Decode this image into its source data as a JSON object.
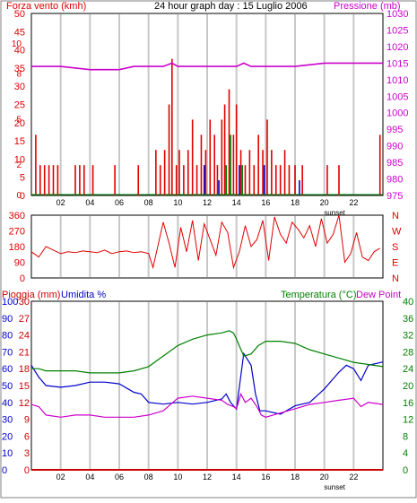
{
  "title": "24 hour graph day : 15 Luglio 2006",
  "colors": {
    "wind": "#e00000",
    "pressure": "#cc00cc",
    "gust_blue": "#0000cc",
    "gust_green": "#008000",
    "direction": "#e00000",
    "humidity": "#0000cc",
    "temperature": "#008000",
    "dew_point": "#cc00cc",
    "rain": "#cc0000",
    "grid": "#c8c8c8",
    "axis": "#000000"
  },
  "x_ticks": [
    "02",
    "04",
    "06",
    "08",
    "10",
    "12",
    "14",
    "16",
    "18",
    "20",
    "22"
  ],
  "sunset_label": "sunset",
  "chart_data": [
    {
      "type": "bar",
      "left_axis_label": "Forza vento (kmh)",
      "right_axis_label": "Pressione (mb)",
      "left_ticks": [
        "0",
        "5",
        "10",
        "15",
        "20",
        "25",
        "30",
        "35",
        "40",
        "45",
        "50"
      ],
      "left_ylim": [
        0,
        50
      ],
      "right_ticks": [
        "975",
        "980",
        "985",
        "990",
        "995",
        "1000",
        "1005",
        "1010",
        "1015",
        "1020",
        "1025",
        "1030"
      ],
      "right_ylim": [
        975,
        1030
      ],
      "xlim": [
        0,
        24
      ],
      "inner_axis_ticks": [
        "0",
        "2",
        "5",
        "8",
        "10"
      ],
      "wind_bars": [
        [
          0.3,
          4
        ],
        [
          0.6,
          2
        ],
        [
          0.9,
          2
        ],
        [
          1.2,
          2
        ],
        [
          1.5,
          2
        ],
        [
          1.8,
          2
        ],
        [
          3.0,
          2
        ],
        [
          3.3,
          2
        ],
        [
          3.6,
          2
        ],
        [
          4.2,
          2
        ],
        [
          5.7,
          2
        ],
        [
          7.3,
          2
        ],
        [
          8.5,
          3
        ],
        [
          8.8,
          2
        ],
        [
          9.1,
          3
        ],
        [
          9.4,
          6
        ],
        [
          9.6,
          9
        ],
        [
          9.9,
          2
        ],
        [
          10.1,
          3
        ],
        [
          10.4,
          2
        ],
        [
          10.7,
          3
        ],
        [
          11.0,
          5
        ],
        [
          11.3,
          2
        ],
        [
          11.6,
          4
        ],
        [
          11.9,
          3
        ],
        [
          12.2,
          5
        ],
        [
          12.5,
          4
        ],
        [
          12.7,
          2
        ],
        [
          13.0,
          5
        ],
        [
          13.2,
          6
        ],
        [
          13.5,
          7
        ],
        [
          13.8,
          4
        ],
        [
          14.0,
          6
        ],
        [
          14.3,
          3
        ],
        [
          14.6,
          2
        ],
        [
          14.9,
          3
        ],
        [
          15.2,
          2
        ],
        [
          15.5,
          4
        ],
        [
          15.8,
          3
        ],
        [
          16.1,
          5
        ],
        [
          16.4,
          3
        ],
        [
          16.7,
          2
        ],
        [
          17.0,
          2
        ],
        [
          17.3,
          3
        ],
        [
          17.6,
          2
        ],
        [
          18.0,
          2
        ],
        [
          18.5,
          2
        ],
        [
          20.2,
          2
        ],
        [
          21.0,
          2
        ],
        [
          23.8,
          4
        ]
      ],
      "gust_blue_bars": [
        [
          11.8,
          2
        ],
        [
          12.8,
          1
        ],
        [
          14.2,
          2
        ],
        [
          15.9,
          2
        ],
        [
          18.3,
          1
        ]
      ],
      "gust_green_bars": [
        [
          13.3,
          2
        ],
        [
          13.6,
          4
        ],
        [
          14.4,
          2
        ]
      ],
      "pressure": {
        "x": [
          0,
          2,
          4,
          6,
          7,
          8,
          9,
          9.6,
          10,
          11,
          12,
          13,
          14,
          14.5,
          15,
          16,
          18,
          20,
          22,
          24
        ],
        "y": [
          1014,
          1014,
          1013,
          1013,
          1014,
          1014,
          1014,
          1015,
          1014,
          1014,
          1014,
          1014,
          1014,
          1015,
          1014,
          1014,
          1014,
          1015,
          1015,
          1015
        ]
      }
    },
    {
      "type": "line",
      "left_axis_label": "",
      "right_axis_label": "",
      "left_ticks": [
        "0",
        "90",
        "180",
        "270",
        "360"
      ],
      "left_ylim": [
        0,
        360
      ],
      "right_ticks": [
        "N",
        "E",
        "S",
        "W",
        "N"
      ],
      "xlim": [
        0,
        24
      ],
      "direction": {
        "x": [
          0,
          0.5,
          1.0,
          1.5,
          2.0,
          2.5,
          3.0,
          3.5,
          4.0,
          4.5,
          5.0,
          5.5,
          6.0,
          6.5,
          7.0,
          7.5,
          8.0,
          8.3,
          8.6,
          9.0,
          9.4,
          9.8,
          10.2,
          10.6,
          11.0,
          11.4,
          11.8,
          12.2,
          12.6,
          13.0,
          13.4,
          13.8,
          14.2,
          14.6,
          15.0,
          15.4,
          15.8,
          16.2,
          16.6,
          17.0,
          17.4,
          17.8,
          18.2,
          18.6,
          19.0,
          19.4,
          19.8,
          20.2,
          20.6,
          21.0,
          21.4,
          21.8,
          22.2,
          22.6,
          23.0,
          23.4,
          23.8
        ],
        "y": [
          150,
          120,
          180,
          160,
          140,
          150,
          145,
          155,
          150,
          145,
          160,
          140,
          150,
          155,
          145,
          150,
          140,
          60,
          170,
          320,
          200,
          60,
          290,
          150,
          330,
          100,
          310,
          220,
          130,
          320,
          260,
          60,
          150,
          300,
          180,
          220,
          330,
          100,
          350,
          250,
          200,
          320,
          280,
          230,
          300,
          180,
          340,
          200,
          250,
          360,
          90,
          140,
          260,
          120,
          100,
          150,
          170
        ]
      }
    },
    {
      "type": "line",
      "left_axis_label": "Pioggia (mm)",
      "left_axis_label_2": "Umidita %",
      "right_axis_label": "Temperatura (°C)",
      "right_axis_label_2": "Dew Point",
      "rain_ticks": [
        "0",
        "3",
        "6",
        "9",
        "12",
        "15",
        "18",
        "21",
        "24",
        "27",
        "30"
      ],
      "rain_ylim": [
        0,
        30
      ],
      "humidity_ticks": [
        "0",
        "10",
        "20",
        "30",
        "40",
        "50",
        "60",
        "70",
        "80",
        "90",
        "100"
      ],
      "humidity_ylim": [
        0,
        100
      ],
      "right_ticks": [
        "0",
        "4",
        "8",
        "12",
        "16",
        "20",
        "24",
        "28",
        "32",
        "36",
        "40"
      ],
      "right_ylim": [
        0,
        40
      ],
      "xlim": [
        0,
        24
      ],
      "humidity": {
        "x": [
          0,
          0.5,
          1,
          2,
          3,
          4,
          5,
          6,
          7,
          7.5,
          8,
          9,
          10,
          11,
          12,
          13,
          13.3,
          13.6,
          13.8,
          14,
          14.5,
          15,
          15.3,
          15.6,
          16,
          17,
          18,
          19,
          20,
          21,
          21.5,
          22,
          22.5,
          23,
          24
        ],
        "y": [
          62,
          55,
          50,
          49,
          50,
          52,
          52,
          51,
          46,
          45,
          40,
          39,
          40,
          39,
          40,
          42,
          45,
          40,
          38,
          36,
          69,
          62,
          45,
          35,
          35,
          33,
          38,
          40,
          48,
          58,
          62,
          60,
          53,
          62,
          64
        ]
      },
      "temperature": {
        "x": [
          0,
          0.5,
          1,
          2,
          3,
          4,
          5,
          6,
          7,
          8,
          9,
          10,
          11,
          12,
          13,
          13.5,
          13.8,
          14,
          14.5,
          15,
          15.5,
          16,
          17,
          18,
          19,
          20,
          21,
          22,
          23,
          24
        ],
        "y": [
          24,
          24,
          23.5,
          23.5,
          23.5,
          23,
          23,
          23,
          23.5,
          24.5,
          27,
          29.5,
          31,
          32,
          32.5,
          33,
          32.5,
          31,
          27,
          27.5,
          29.5,
          30.5,
          30.5,
          30,
          28.5,
          27.5,
          26.5,
          25.5,
          25,
          24.5
        ]
      },
      "dew_point": {
        "x": [
          0,
          0.5,
          1,
          2,
          3,
          4,
          5,
          6,
          7,
          8,
          9,
          10,
          11,
          12,
          13,
          13.4,
          13.8,
          14,
          14.3,
          14.6,
          15,
          15.4,
          15.7,
          16,
          17,
          18,
          19,
          20,
          21,
          22,
          22.5,
          23,
          24
        ],
        "y": [
          15.5,
          15,
          13,
          12.5,
          13,
          13,
          12.5,
          12.5,
          12.5,
          13,
          14,
          17,
          17.5,
          17,
          16.5,
          15.5,
          15,
          14.5,
          18,
          16,
          17,
          15,
          13,
          12.5,
          13.5,
          14.5,
          15.5,
          16,
          16.5,
          17,
          15,
          16,
          15.5
        ]
      },
      "rain": {
        "x": [
          0,
          24
        ],
        "y": [
          0,
          0
        ]
      }
    }
  ]
}
